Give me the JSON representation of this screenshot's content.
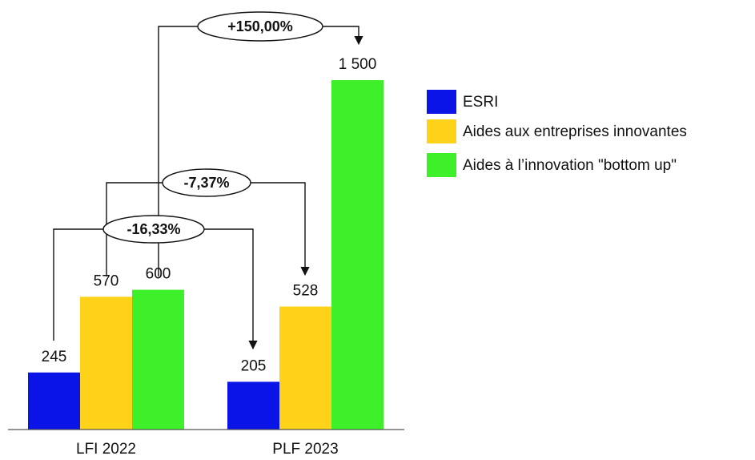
{
  "chart_data": {
    "type": "bar",
    "categories": [
      "LFI 2022",
      "PLF 2023"
    ],
    "series": [
      {
        "name": "ESRI",
        "color": "#0a14e6",
        "values": [
          245,
          205
        ]
      },
      {
        "name": "Aides aux entreprises innovantes",
        "color": "#ffd21a",
        "values": [
          570,
          528
        ]
      },
      {
        "name": "Aides à l’innovation \"bottom up\"",
        "color": "#3ef02a",
        "values": [
          600,
          1500
        ],
        "value_labels": [
          "600",
          "1 500"
        ]
      }
    ],
    "annotations": [
      "+150,00%",
      "-7,37%",
      "-16,33%"
    ],
    "legend": "right"
  }
}
